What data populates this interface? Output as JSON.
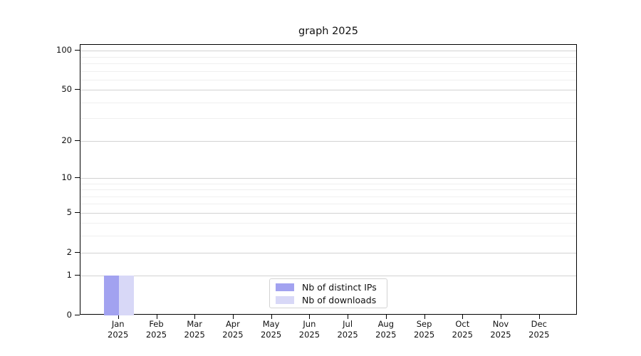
{
  "title": "graph 2025",
  "chart_data": {
    "type": "bar",
    "title": "graph 2025",
    "categories": [
      "Jan",
      "Feb",
      "Mar",
      "Apr",
      "May",
      "Jun",
      "Jul",
      "Aug",
      "Sep",
      "Oct",
      "Nov",
      "Dec"
    ],
    "year_label": "2025",
    "series": [
      {
        "name": "Nb of distinct IPs",
        "color": "#a2a2f0",
        "values": [
          1,
          0,
          0,
          0,
          0,
          0,
          0,
          0,
          0,
          0,
          0,
          0
        ]
      },
      {
        "name": "Nb of downloads",
        "color": "#d8d8f7",
        "values": [
          1,
          0,
          0,
          0,
          0,
          0,
          0,
          0,
          0,
          0,
          0,
          0
        ]
      }
    ],
    "y_ticks": [
      0,
      1,
      2,
      5,
      10,
      20,
      50,
      100
    ],
    "ylim": [
      0,
      100
    ],
    "y_scale": "log10(value+1)",
    "grid": "horizontal major+minor",
    "legend_position": "inside bottom-center"
  }
}
